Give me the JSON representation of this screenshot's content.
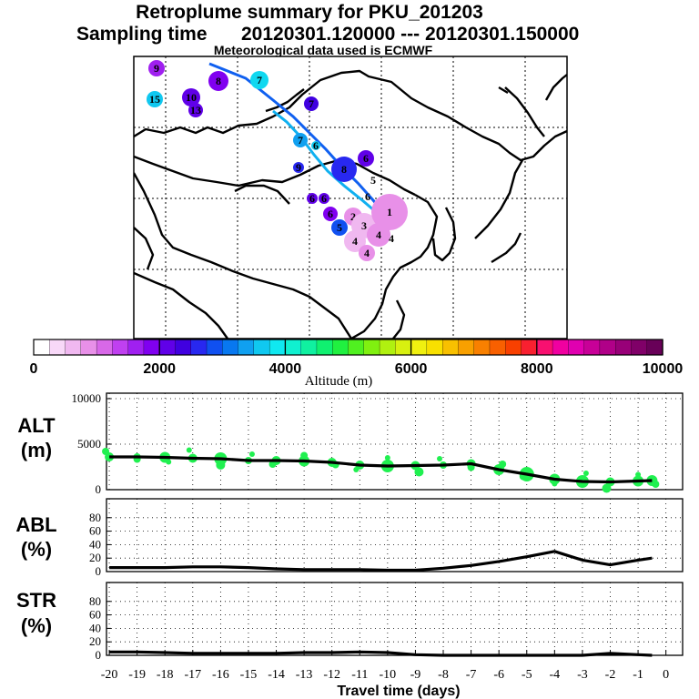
{
  "header": {
    "title": "Retroplume summary for PKU_201203",
    "sampling_label": "Sampling time",
    "sampling_range": "20120301.120000 --- 20120301.150000",
    "met_note": "Meteorological data used is ECMWF"
  },
  "colorbar": {
    "label": "Altitude (m)",
    "tick_labels": [
      "0",
      "2000",
      "4000",
      "6000",
      "8000",
      "10000"
    ],
    "colors": [
      "#ffffff",
      "#f8d8f8",
      "#f0b8f0",
      "#e890e8",
      "#d868e8",
      "#c040f0",
      "#a020f0",
      "#8000f0",
      "#6000e8",
      "#4000e0",
      "#2828f0",
      "#1050f0",
      "#0878f0",
      "#10a0f0",
      "#10c8f0",
      "#10e8f0",
      "#10f0d0",
      "#10f0a0",
      "#10f070",
      "#20f040",
      "#50f020",
      "#80f010",
      "#b0f010",
      "#d8f010",
      "#f0f010",
      "#f8e000",
      "#f8c000",
      "#f8a000",
      "#f88000",
      "#f86000",
      "#f84000",
      "#f82030",
      "#f81070",
      "#f000a0",
      "#e000b0",
      "#c80098",
      "#b00088",
      "#980078",
      "#800068",
      "#680058"
    ]
  },
  "map": {
    "trajectory_a": {
      "color": "#1060f0"
    },
    "trajectory_b": {
      "color": "#10b0f0"
    },
    "markers": [
      {
        "label": "9",
        "color": "#a020f0"
      },
      {
        "label": "8",
        "color": "#8000f0"
      },
      {
        "label": "7",
        "color": "#10d8f0"
      },
      {
        "label": "15",
        "color": "#10c8f0"
      },
      {
        "label": "10",
        "color": "#6000e8"
      },
      {
        "label": "13",
        "color": "#6000e8"
      },
      {
        "label": "7",
        "color": "#4000e0"
      },
      {
        "label": "7",
        "color": "#10a0f0"
      },
      {
        "label": "6",
        "color": "#10c8f0"
      },
      {
        "label": "9",
        "color": "#2828f0"
      },
      {
        "label": "8",
        "color": "#2828f0"
      },
      {
        "label": "6",
        "color": "#6000e8"
      },
      {
        "label": "5",
        "color": "#ffffff"
      },
      {
        "label": "6",
        "color": "#ffffff"
      },
      {
        "label": "6",
        "color": "#6000e8"
      },
      {
        "label": "6",
        "color": "#6000e8"
      },
      {
        "label": "6",
        "color": "#8000f0"
      },
      {
        "label": "5",
        "color": "#1050f0"
      },
      {
        "label": "2",
        "color": "#e890e8"
      },
      {
        "label": "3",
        "color": "#f0b8f0"
      },
      {
        "label": "1",
        "color": "#e890e8"
      },
      {
        "label": "4",
        "color": "#f0b8f0"
      },
      {
        "label": "4",
        "color": "#e890e8"
      },
      {
        "label": "4",
        "color": "#e890e8"
      },
      {
        "label": "4",
        "color": "#ffffff"
      }
    ]
  },
  "chart_data": [
    {
      "type": "line",
      "name": "ALT",
      "ylabel": "ALT\n(m)",
      "ylabel_line1": "ALT",
      "ylabel_line2": "(m)",
      "ylim": [
        0,
        10000
      ],
      "y_ticks": [
        0,
        5000,
        10000
      ],
      "x": [
        -20,
        -19,
        -18,
        -17,
        -16,
        -15,
        -14,
        -13,
        -12,
        -11,
        -10,
        -9,
        -8,
        -7,
        -6,
        -5,
        -4,
        -3,
        -2,
        -1,
        -0.5
      ],
      "values": [
        3600,
        3600,
        3550,
        3450,
        3400,
        3200,
        3200,
        3150,
        3000,
        2700,
        2600,
        2650,
        2700,
        2850,
        2200,
        1700,
        1150,
        900,
        850,
        950,
        1000
      ],
      "scatter_color": "#20f050"
    },
    {
      "type": "line",
      "name": "ABL",
      "ylabel_line1": "ABL",
      "ylabel_line2": "(%)",
      "ylim": [
        0,
        100
      ],
      "y_ticks": [
        0,
        20,
        40,
        60,
        80
      ],
      "x": [
        -20,
        -19,
        -18,
        -17,
        -16,
        -15,
        -14,
        -13,
        -12,
        -11,
        -10,
        -9,
        -8,
        -7,
        -6,
        -5,
        -4,
        -3,
        -2,
        -1,
        -0.5
      ],
      "values": [
        6,
        6,
        6,
        7,
        7,
        6,
        4,
        3,
        3,
        3,
        2,
        2,
        5,
        9,
        15,
        22,
        30,
        17,
        10,
        17,
        20
      ]
    },
    {
      "type": "line",
      "name": "STR",
      "ylabel_line1": "STR",
      "ylabel_line2": "(%)",
      "ylim": [
        0,
        100
      ],
      "y_ticks": [
        0,
        20,
        40,
        60,
        80
      ],
      "x": [
        -20,
        -19,
        -18,
        -17,
        -16,
        -15,
        -14,
        -13,
        -12,
        -11,
        -10,
        -9,
        -8,
        -7,
        -6,
        -5,
        -4,
        -3,
        -2,
        -1,
        -0.5
      ],
      "values": [
        5,
        5,
        4,
        3,
        3,
        3,
        3,
        4,
        4,
        5,
        4,
        1,
        0,
        0,
        0,
        0,
        0,
        0,
        3,
        1,
        0
      ]
    }
  ],
  "xaxis": {
    "label": "Travel time (days)",
    "ticks": [
      -20,
      -19,
      -18,
      -17,
      -16,
      -15,
      -14,
      -13,
      -12,
      -11,
      -10,
      -9,
      -8,
      -7,
      -6,
      -5,
      -4,
      -3,
      -2,
      -1,
      0
    ],
    "tick_labels": [
      "-20",
      "-19",
      "-18",
      "-17",
      "-16",
      "-15",
      "-14",
      "-13",
      "-12",
      "-11",
      "-10",
      "-9",
      "-8",
      "-7",
      "-6",
      "-5",
      "-4",
      "-3",
      "-2",
      "-1",
      "0"
    ]
  }
}
